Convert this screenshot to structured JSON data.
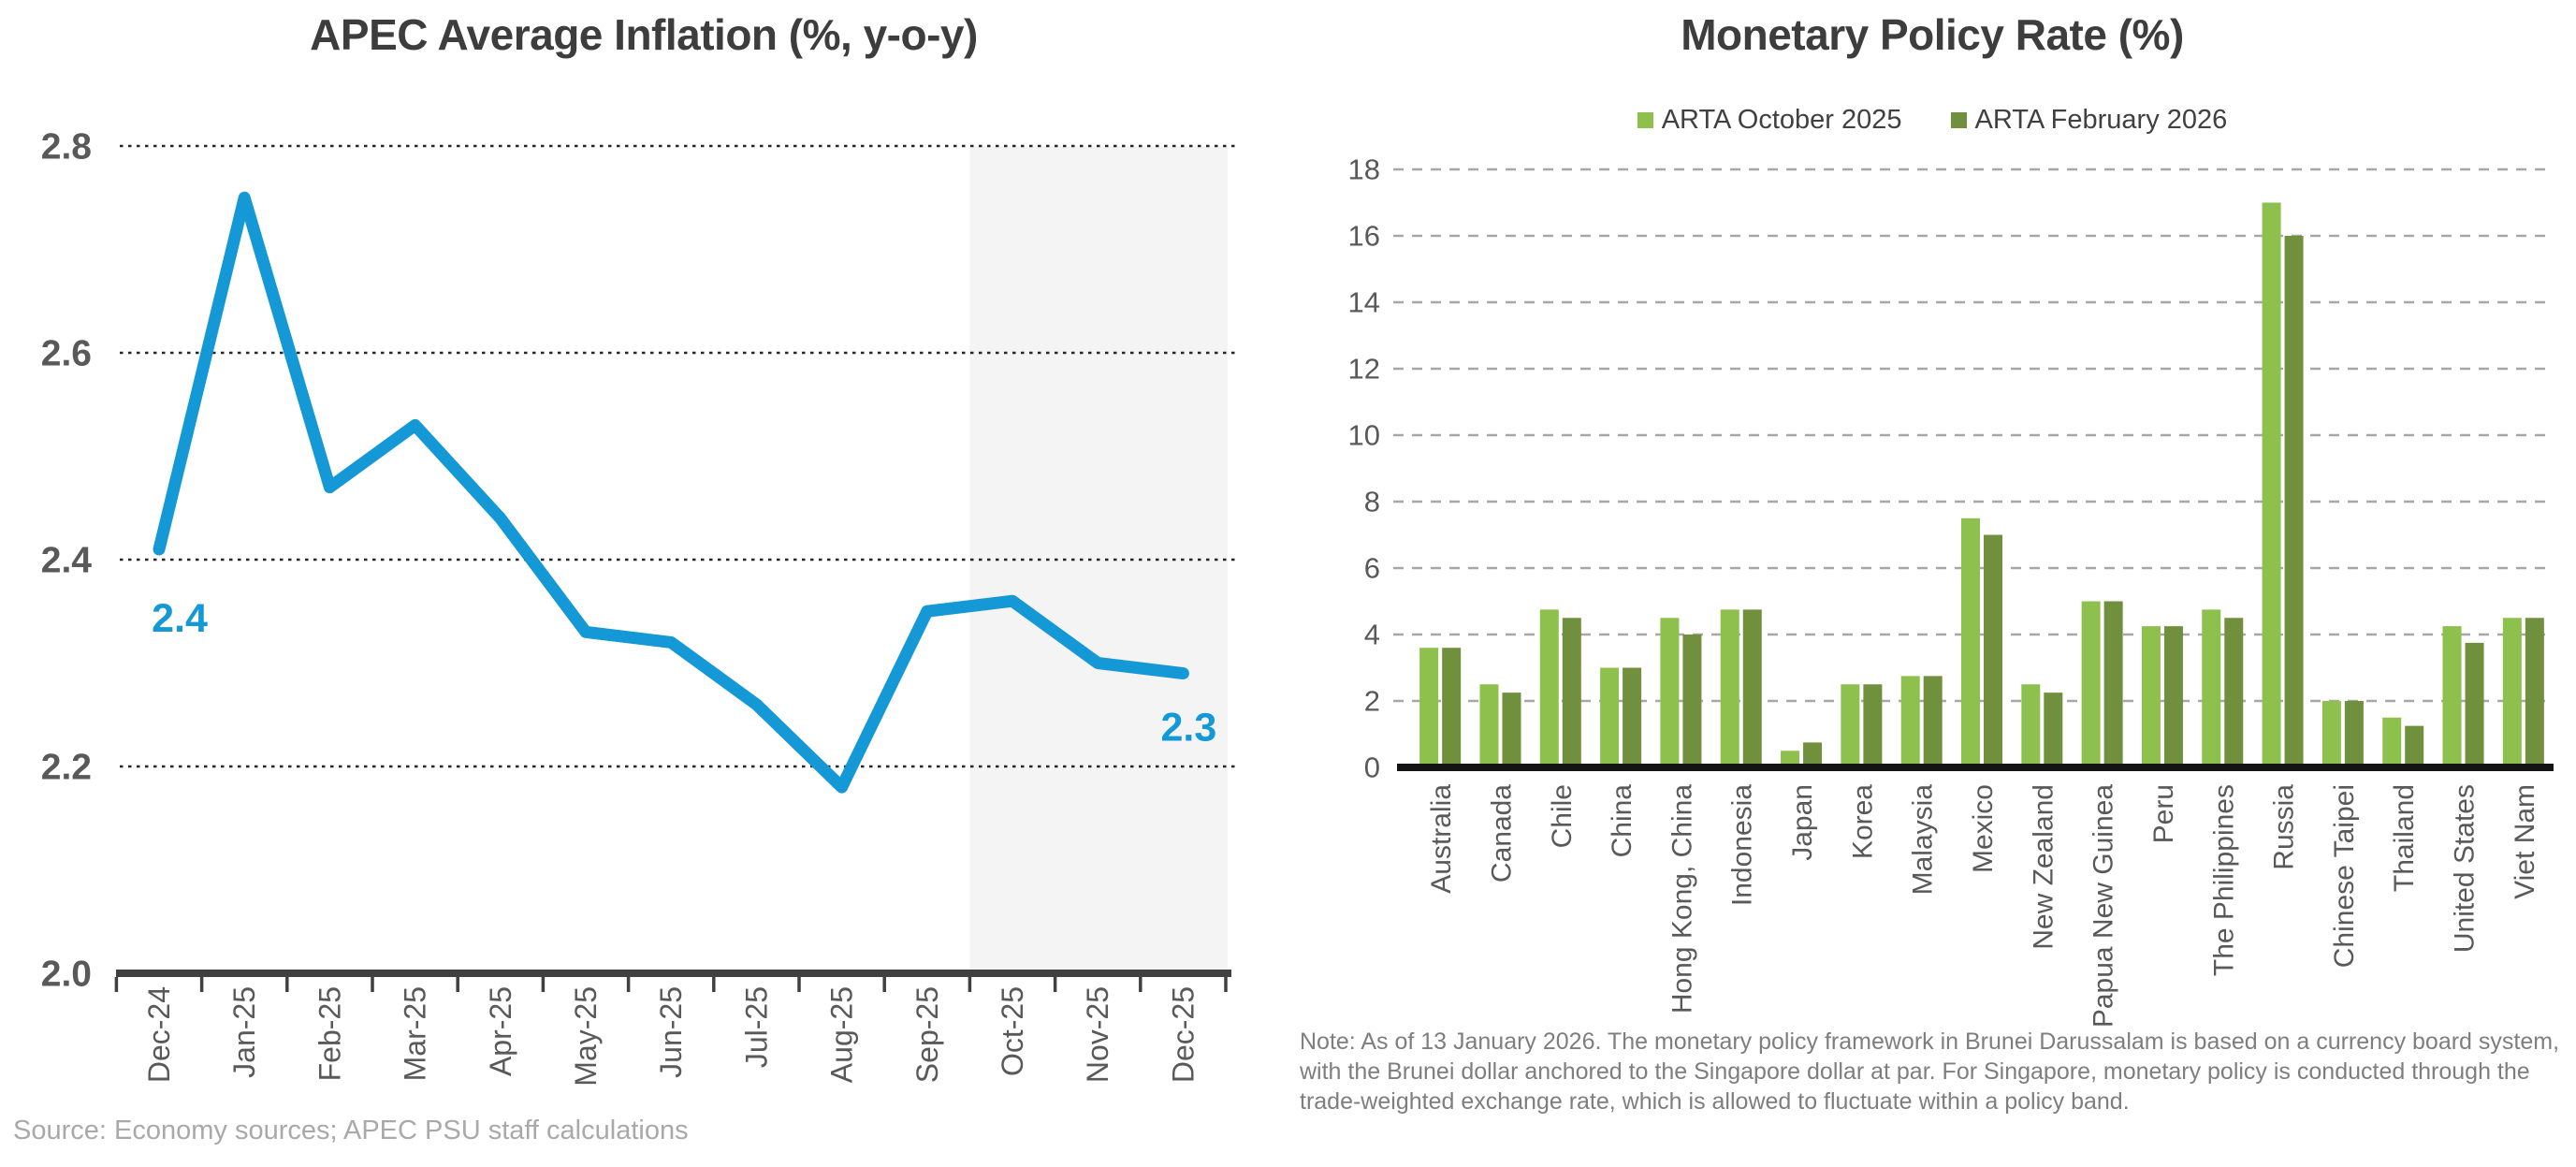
{
  "chart_data": [
    {
      "type": "line",
      "title": "APEC Average Inflation (%, y-o-y)",
      "x": [
        "Dec-24",
        "Jan-25",
        "Feb-25",
        "Mar-25",
        "Apr-25",
        "May-25",
        "Jun-25",
        "Jul-25",
        "Aug-25",
        "Sep-25",
        "Oct-25",
        "Nov-25",
        "Dec-25"
      ],
      "values": [
        2.41,
        2.75,
        2.47,
        2.53,
        2.44,
        2.33,
        2.32,
        2.26,
        2.18,
        2.35,
        2.36,
        2.3,
        2.29
      ],
      "ylim": [
        2.0,
        2.8
      ],
      "yticks": [
        "2.8",
        "2.6",
        "2.4",
        "2.2",
        "2.0"
      ],
      "ytick_values": [
        2.8,
        2.6,
        2.4,
        2.2,
        2.0
      ],
      "grid": "dotted",
      "line_color": "#1598D6",
      "first_point_label": "2.4",
      "last_point_label": "2.3",
      "forecast_shade": {
        "from_index": 9.5,
        "to_end": true,
        "color": "#f4f4f4"
      },
      "source": "Source: Economy sources; APEC PSU staff calculations"
    },
    {
      "type": "bar",
      "title": "Monetary Policy Rate (%)",
      "categories": [
        "Australia",
        "Canada",
        "Chile",
        "China",
        "Hong Kong, China",
        "Indonesia",
        "Japan",
        "Korea",
        "Malaysia",
        "Mexico",
        "New Zealand",
        "Papua New Guinea",
        "Peru",
        "The Philippines",
        "Russia",
        "Chinese Taipei",
        "Thailand",
        "United States",
        "Viet Nam"
      ],
      "series": [
        {
          "name": "ARTA October 2025",
          "color": "#8DC04D",
          "values": [
            3.6,
            2.5,
            4.75,
            3.0,
            4.5,
            4.75,
            0.5,
            2.5,
            2.75,
            7.5,
            2.5,
            5.0,
            4.25,
            4.75,
            17.0,
            2.0,
            1.5,
            4.25,
            4.5
          ]
        },
        {
          "name": "ARTA February 2026",
          "color": "#70903D",
          "values": [
            3.6,
            2.25,
            4.5,
            3.0,
            4.0,
            4.75,
            0.75,
            2.5,
            2.75,
            7.0,
            2.25,
            5.0,
            4.25,
            4.5,
            16.0,
            2.0,
            1.25,
            3.75,
            4.5
          ]
        }
      ],
      "ylim": [
        0,
        18
      ],
      "yticks": [
        "18",
        "16",
        "14",
        "12",
        "10",
        "8",
        "6",
        "4",
        "2",
        "0"
      ],
      "ytick_values": [
        18,
        16,
        14,
        12,
        10,
        8,
        6,
        4,
        2,
        0
      ],
      "grid": "dashed",
      "legend_position": "top",
      "note": "Note: As of 13 January 2026. The monetary policy framework in Brunei Darussalam is based on a currency board system, with the Brunei dollar anchored to the Singapore dollar at par. For Singapore, monetary policy is conducted through the trade-weighted exchange rate, which is allowed to fluctuate within a policy band."
    }
  ]
}
